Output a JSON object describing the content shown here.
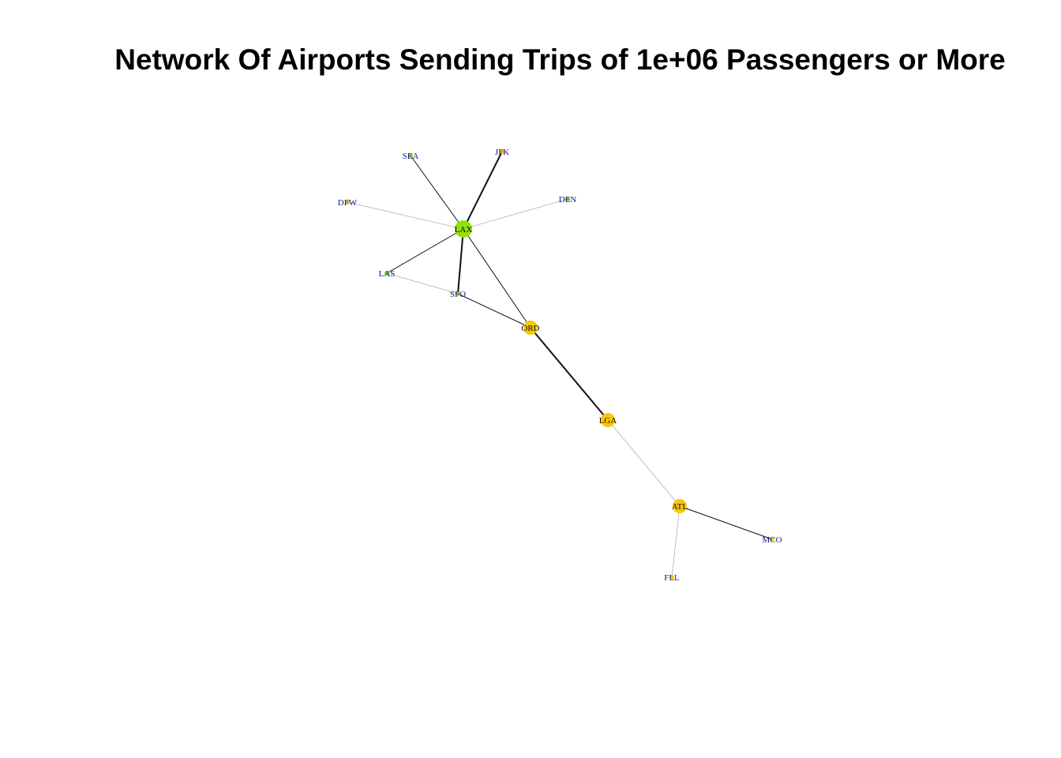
{
  "title": "Network Of Airports Sending Trips of 1e+06 Passengers or More",
  "colors": {
    "group_a": "#8fe00c",
    "group_b": "#f6c80a",
    "label_a": "#1a1a8c",
    "label_b": "#111111",
    "edge_dark": "#111111",
    "edge_light": "#b0b0b0"
  },
  "nodes": [
    {
      "id": "LAX",
      "label": "LAX",
      "group": "a",
      "size": "large"
    },
    {
      "id": "SEA",
      "label": "SEA",
      "group": "a",
      "size": "tiny"
    },
    {
      "id": "JFK",
      "label": "JFK",
      "group": "b",
      "size": "tiny"
    },
    {
      "id": "DEN",
      "label": "DEN",
      "group": "a",
      "size": "tiny"
    },
    {
      "id": "DFW",
      "label": "DFW",
      "group": "b",
      "size": "tiny"
    },
    {
      "id": "LAS",
      "label": "LAS",
      "group": "a",
      "size": "tiny"
    },
    {
      "id": "SFO",
      "label": "SFO",
      "group": "a",
      "size": "tiny"
    },
    {
      "id": "ORD",
      "label": "ORD",
      "group": "b",
      "size": "medium"
    },
    {
      "id": "LGA",
      "label": "LGA",
      "group": "b",
      "size": "medium"
    },
    {
      "id": "ATL",
      "label": "ATL",
      "group": "b",
      "size": "medium"
    },
    {
      "id": "MCO",
      "label": "MCO",
      "group": "b",
      "size": "tiny"
    },
    {
      "id": "FLL",
      "label": "FLL",
      "group": "b",
      "size": "tiny"
    }
  ],
  "edges": [
    {
      "from": "LAX",
      "to": "SEA",
      "weight": "medium"
    },
    {
      "from": "LAX",
      "to": "JFK",
      "weight": "heavy"
    },
    {
      "from": "LAX",
      "to": "DEN",
      "weight": "light"
    },
    {
      "from": "LAX",
      "to": "DFW",
      "weight": "light"
    },
    {
      "from": "LAX",
      "to": "LAS",
      "weight": "medium"
    },
    {
      "from": "LAX",
      "to": "SFO",
      "weight": "heavy"
    },
    {
      "from": "LAX",
      "to": "ORD",
      "weight": "medium"
    },
    {
      "from": "LAS",
      "to": "SFO",
      "weight": "light"
    },
    {
      "from": "SFO",
      "to": "ORD",
      "weight": "medium"
    },
    {
      "from": "ORD",
      "to": "LGA",
      "weight": "heavy"
    },
    {
      "from": "LGA",
      "to": "ATL",
      "weight": "light"
    },
    {
      "from": "ATL",
      "to": "MCO",
      "weight": "medium"
    },
    {
      "from": "ATL",
      "to": "FLL",
      "weight": "light"
    }
  ]
}
